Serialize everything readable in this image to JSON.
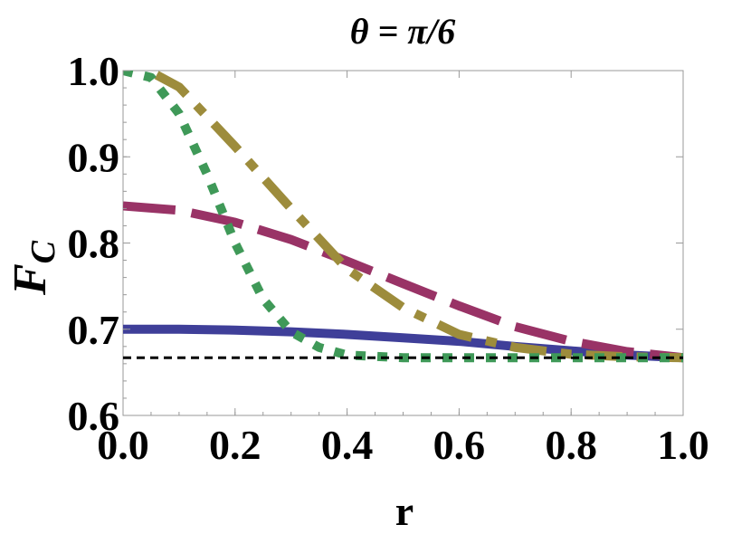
{
  "chart_data": {
    "type": "line",
    "title": "θ = π/6",
    "xlabel": "r",
    "ylabel_main": "F",
    "ylabel_sub": "C",
    "xlim": [
      0.0,
      1.0
    ],
    "ylim": [
      0.6,
      1.0
    ],
    "xticks": [
      "0.0",
      "0.2",
      "0.4",
      "0.6",
      "0.8",
      "1.0"
    ],
    "yticks": [
      "0.6",
      "0.7",
      "0.8",
      "0.9",
      "1.0"
    ],
    "grid": false,
    "series": [
      {
        "style": "solid",
        "color": "#3f3f99",
        "x": [
          0.0,
          0.1,
          0.2,
          0.3,
          0.4,
          0.5,
          0.6,
          0.7,
          0.8,
          0.9,
          1.0
        ],
        "y": [
          0.7,
          0.7,
          0.699,
          0.697,
          0.694,
          0.69,
          0.686,
          0.68,
          0.675,
          0.67,
          0.667
        ]
      },
      {
        "style": "long-dash",
        "color": "#993366",
        "x": [
          0.0,
          0.1,
          0.2,
          0.3,
          0.4,
          0.5,
          0.6,
          0.7,
          0.8,
          0.9,
          1.0
        ],
        "y": [
          0.843,
          0.838,
          0.824,
          0.804,
          0.779,
          0.753,
          0.727,
          0.703,
          0.686,
          0.674,
          0.667
        ]
      },
      {
        "style": "dash-dot",
        "color": "#9d8c3c",
        "x": [
          0.06,
          0.1,
          0.2,
          0.3,
          0.4,
          0.5,
          0.6,
          0.7,
          0.8,
          0.9,
          1.0
        ],
        "y": [
          0.995,
          0.981,
          0.912,
          0.84,
          0.77,
          0.725,
          0.694,
          0.679,
          0.671,
          0.668,
          0.667
        ]
      },
      {
        "style": "dotted",
        "color": "#3f9958",
        "x": [
          0.0,
          0.05,
          0.1,
          0.15,
          0.2,
          0.25,
          0.3,
          0.35,
          0.4,
          0.5,
          0.6,
          0.7,
          0.8,
          0.9,
          1.0
        ],
        "y": [
          1.0,
          0.992,
          0.95,
          0.88,
          0.8,
          0.735,
          0.697,
          0.679,
          0.67,
          0.667,
          0.667,
          0.667,
          0.667,
          0.667,
          0.667
        ]
      },
      {
        "style": "short-dash",
        "color": "#000000",
        "x": [
          0.0,
          1.0
        ],
        "y": [
          0.667,
          0.667
        ]
      }
    ]
  }
}
